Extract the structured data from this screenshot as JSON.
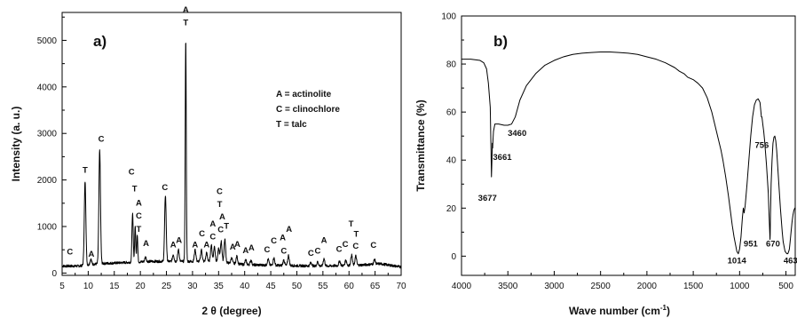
{
  "chart_data": [
    {
      "panel_label": "a)",
      "type": "line",
      "xlabel": "2 θ (degree)",
      "ylabel": "Intensity (a. u.)",
      "xlim": [
        5,
        70
      ],
      "ylim": [
        -50,
        5600
      ],
      "x_ticks": [
        "5",
        "10",
        "15",
        "20",
        "25",
        "30",
        "35",
        "40",
        "45",
        "50",
        "55",
        "60",
        "65",
        "70"
      ],
      "y_ticks": [
        "0",
        "1000",
        "2000",
        "3000",
        "4000",
        "5000"
      ],
      "legend": [
        "A = actinolite",
        "C = clinochlore",
        "T = talc"
      ],
      "grid": false,
      "baseline": [
        [
          5,
          150
        ],
        [
          8,
          150
        ],
        [
          12,
          200
        ],
        [
          16,
          220
        ],
        [
          22,
          250
        ],
        [
          27,
          250
        ],
        [
          34,
          250
        ],
        [
          40,
          180
        ],
        [
          48,
          160
        ],
        [
          55,
          150
        ],
        [
          62,
          170
        ],
        [
          66,
          200
        ],
        [
          70,
          130
        ]
      ],
      "peaks": [
        [
          9.4,
          1800,
          0.15
        ],
        [
          10.5,
          120,
          0.15
        ],
        [
          12.2,
          2450,
          0.15
        ],
        [
          18.5,
          1050,
          0.12
        ],
        [
          19.0,
          780,
          0.1
        ],
        [
          19.4,
          600,
          0.1
        ],
        [
          21.0,
          100,
          0.15
        ],
        [
          24.8,
          1420,
          0.15
        ],
        [
          26.3,
          150,
          0.15
        ],
        [
          27.3,
          250,
          0.15
        ],
        [
          28.7,
          4800,
          0.1
        ],
        [
          30.5,
          250,
          0.15
        ],
        [
          31.7,
          250,
          0.15
        ],
        [
          32.7,
          180,
          0.15
        ],
        [
          33.6,
          350,
          0.15
        ],
        [
          34.2,
          320,
          0.15
        ],
        [
          35.0,
          280,
          0.15
        ],
        [
          35.5,
          450,
          0.15
        ],
        [
          36.2,
          500,
          0.15
        ],
        [
          37.5,
          120,
          0.15
        ],
        [
          38.5,
          160,
          0.15
        ],
        [
          40.2,
          100,
          0.15
        ],
        [
          41.2,
          100,
          0.15
        ],
        [
          44.5,
          130,
          0.15
        ],
        [
          45.6,
          160,
          0.15
        ],
        [
          47.5,
          120,
          0.15
        ],
        [
          48.4,
          220,
          0.15
        ],
        [
          52.7,
          80,
          0.15
        ],
        [
          54.0,
          90,
          0.15
        ],
        [
          55.2,
          160,
          0.15
        ],
        [
          58.2,
          100,
          0.15
        ],
        [
          59.4,
          120,
          0.15
        ],
        [
          60.5,
          220,
          0.15
        ],
        [
          61.3,
          200,
          0.15
        ],
        [
          64.9,
          100,
          0.15
        ]
      ],
      "peak_labels": [
        {
          "text": "C",
          "x": 6.5,
          "y": 400
        },
        {
          "text": "T",
          "x": 9.4,
          "y": 2150
        },
        {
          "text": "A",
          "x": 10.6,
          "y": 350
        },
        {
          "text": "C",
          "x": 12.5,
          "y": 2820
        },
        {
          "text": "C",
          "x": 18.3,
          "y": 2120
        },
        {
          "text": "T",
          "x": 18.9,
          "y": 1750
        },
        {
          "text": "A",
          "x": 19.7,
          "y": 1450
        },
        {
          "text": "C",
          "x": 19.7,
          "y": 1170
        },
        {
          "text": "T",
          "x": 19.7,
          "y": 890
        },
        {
          "text": "A",
          "x": 21.1,
          "y": 580
        },
        {
          "text": "C",
          "x": 24.7,
          "y": 1780
        },
        {
          "text": "A",
          "x": 26.3,
          "y": 550
        },
        {
          "text": "A",
          "x": 27.4,
          "y": 650
        },
        {
          "text": "A",
          "x": 28.7,
          "y": 5600
        },
        {
          "text": "T",
          "x": 28.7,
          "y": 5320
        },
        {
          "text": "A",
          "x": 30.5,
          "y": 550
        },
        {
          "text": "C",
          "x": 31.8,
          "y": 790
        },
        {
          "text": "A",
          "x": 32.7,
          "y": 550
        },
        {
          "text": "A",
          "x": 33.9,
          "y": 1000
        },
        {
          "text": "C",
          "x": 33.9,
          "y": 720
        },
        {
          "text": "C",
          "x": 35.2,
          "y": 1700
        },
        {
          "text": "T",
          "x": 35.2,
          "y": 1420
        },
        {
          "text": "A",
          "x": 35.7,
          "y": 1150
        },
        {
          "text": "C",
          "x": 35.4,
          "y": 880
        },
        {
          "text": "T",
          "x": 36.5,
          "y": 950
        },
        {
          "text": "A",
          "x": 37.7,
          "y": 500
        },
        {
          "text": "A",
          "x": 38.6,
          "y": 560
        },
        {
          "text": "A",
          "x": 40.2,
          "y": 430
        },
        {
          "text": "A",
          "x": 41.3,
          "y": 480
        },
        {
          "text": "C",
          "x": 44.3,
          "y": 450
        },
        {
          "text": "C",
          "x": 45.6,
          "y": 640
        },
        {
          "text": "A",
          "x": 47.3,
          "y": 700
        },
        {
          "text": "C",
          "x": 47.5,
          "y": 420
        },
        {
          "text": "A",
          "x": 48.5,
          "y": 890
        },
        {
          "text": "C",
          "x": 52.7,
          "y": 370
        },
        {
          "text": "C",
          "x": 54.0,
          "y": 420
        },
        {
          "text": "A",
          "x": 55.2,
          "y": 650
        },
        {
          "text": "C",
          "x": 58.1,
          "y": 460
        },
        {
          "text": "C",
          "x": 59.3,
          "y": 560
        },
        {
          "text": "T",
          "x": 60.4,
          "y": 1000
        },
        {
          "text": "T",
          "x": 61.4,
          "y": 780
        },
        {
          "text": "C",
          "x": 61.3,
          "y": 520
        },
        {
          "text": "C",
          "x": 64.7,
          "y": 540
        }
      ]
    },
    {
      "panel_label": "b)",
      "type": "line",
      "xlabel": "Wave number (cm",
      "xlabel_superscript": "-1",
      "xlabel_suffix": ")",
      "ylabel": "Transmittance (%)",
      "xlim": [
        4000,
        400
      ],
      "x_reversed": true,
      "ylim": [
        -8,
        100
      ],
      "x_ticks": [
        "4000",
        "3500",
        "3000",
        "2500",
        "2000",
        "1500",
        "1000",
        "500"
      ],
      "y_ticks": [
        "0",
        "20",
        "40",
        "60",
        "80",
        "100"
      ],
      "grid": false,
      "series": [
        {
          "x": [
            4000,
            3900,
            3800,
            3760,
            3730,
            3710,
            3690,
            3682,
            3677,
            3672,
            3668,
            3664,
            3661,
            3655,
            3640,
            3600,
            3540,
            3500,
            3460,
            3420,
            3370,
            3300,
            3200,
            3100,
            3000,
            2900,
            2800,
            2700,
            2600,
            2500,
            2400,
            2300,
            2200,
            2100,
            2000,
            1900,
            1800,
            1700,
            1650,
            1600,
            1560,
            1500,
            1450,
            1400,
            1350,
            1300,
            1250,
            1200,
            1180,
            1150,
            1120,
            1100,
            1080,
            1060,
            1040,
            1030,
            1014,
            1000,
            985,
            970,
            960,
            951,
            940,
            920,
            900,
            880,
            860,
            840,
            820,
            800,
            780,
            770,
            765,
            760,
            756,
            750,
            740,
            730,
            720,
            710,
            700,
            690,
            685,
            680,
            675,
            672,
            670,
            668,
            660,
            650,
            640,
            630,
            620,
            610,
            600,
            590,
            580,
            570,
            560,
            550,
            540,
            530,
            520,
            510,
            500,
            490,
            480,
            470,
            463,
            455,
            445,
            435,
            425,
            415,
            405,
            400
          ],
          "y": [
            82,
            82,
            81.5,
            80.5,
            78,
            72,
            62,
            45,
            33,
            40,
            47,
            45,
            48,
            52,
            55,
            55,
            54.5,
            54.5,
            55,
            58,
            65,
            71,
            76,
            79.5,
            81.5,
            83,
            84,
            84.5,
            84.8,
            85,
            85,
            84.8,
            84.5,
            84,
            83,
            82,
            80.5,
            78.5,
            77,
            76,
            74.5,
            73.5,
            72,
            70,
            66,
            60,
            52,
            44,
            40,
            33,
            25,
            19,
            13,
            8,
            4,
            2,
            1,
            3,
            8,
            16,
            20,
            18,
            21,
            30,
            40,
            50,
            58,
            63,
            65,
            65.5,
            64,
            60,
            58,
            58,
            57,
            55,
            52,
            48,
            43,
            38,
            32,
            26,
            20,
            15,
            10,
            7,
            9,
            15,
            30,
            40,
            47,
            49.5,
            50,
            48,
            44,
            38,
            32,
            26,
            20,
            15,
            10,
            6,
            4,
            2,
            1.5,
            1,
            1,
            2,
            3,
            6,
            10,
            14,
            17,
            19,
            20,
            20
          ]
        }
      ],
      "annotations": [
        {
          "text": "3677",
          "x": 3720,
          "y": 23
        },
        {
          "text": "3661",
          "x": 3560,
          "y": 40
        },
        {
          "text": "3460",
          "x": 3400,
          "y": 50
        },
        {
          "text": "756",
          "x": 760,
          "y": 45
        },
        {
          "text": "951",
          "x": 880,
          "y": 4
        },
        {
          "text": "670",
          "x": 640,
          "y": 4
        },
        {
          "text": "1014",
          "x": 1030,
          "y": -3
        },
        {
          "text": "463",
          "x": 450,
          "y": -3
        }
      ]
    }
  ]
}
